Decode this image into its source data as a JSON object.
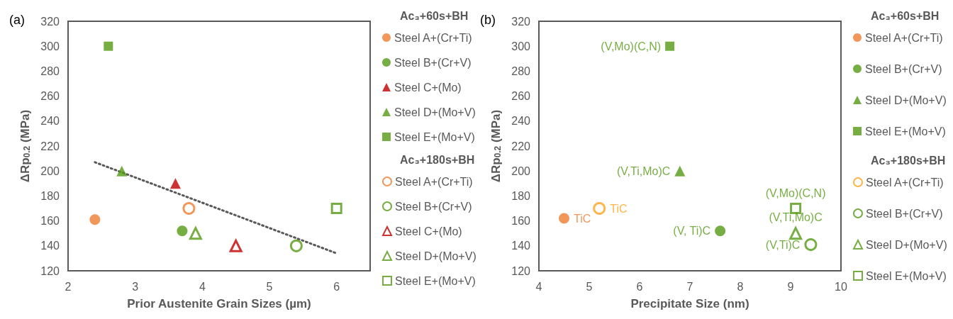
{
  "chart_data": [
    {
      "type": "scatter",
      "title": "(a)",
      "xlabel": "Prior Austenite Grain Sizes (µm)",
      "ylabel": "ΔRp$_{0.2}$ (MPa)",
      "xlim": [
        2,
        6.5
      ],
      "xticks": [
        2,
        3,
        4,
        5,
        6
      ],
      "ylim": [
        120,
        320
      ],
      "yticks": [
        120,
        140,
        160,
        180,
        200,
        220,
        240,
        260,
        280,
        300,
        320
      ],
      "grid": false,
      "legend": "right",
      "annotations": [
        "Ac₃+60s+BH",
        "Ac₃+180s+BH"
      ],
      "series": [
        {
          "name": "Steel A+(Cr+Ti)",
          "color": "#ed7d31",
          "marker": "circle",
          "x": [
            2.4
          ],
          "values": [
            161
          ]
        },
        {
          "name": "Steel B+(Cr+V)",
          "color": "#559a15",
          "marker": "circle",
          "x": [
            3.7
          ],
          "values": [
            152
          ]
        },
        {
          "name": "Steel C+(Mo)",
          "color": "#c00000",
          "marker": "triangle",
          "x": [
            3.6
          ],
          "values": [
            190
          ]
        },
        {
          "name": "Steel D+(Mo+V)",
          "color": "#559a15",
          "marker": "triangle",
          "x": [
            2.8
          ],
          "values": [
            200
          ]
        },
        {
          "name": "Steel E+(Mo+V)",
          "color": "#559a15",
          "marker": "square",
          "x": [
            2.6
          ],
          "values": [
            300
          ]
        },
        {
          "name": "Steel A+(Cr+Ti)",
          "color": "#ed7d31",
          "marker": "circle",
          "x": [
            3.8
          ],
          "values": [
            170
          ]
        },
        {
          "name": "Steel B+(Cr+V)",
          "color": "#559a15",
          "marker": "circle",
          "x": [
            5.4
          ],
          "values": [
            140
          ]
        },
        {
          "name": "Steel C+(Mo)",
          "color": "#c00000",
          "marker": "triangle",
          "x": [
            4.5
          ],
          "values": [
            140
          ]
        },
        {
          "name": "Steel D+(Mo+V)",
          "color": "#559a15",
          "marker": "triangle",
          "x": [
            3.9
          ],
          "values": [
            150
          ]
        },
        {
          "name": "Steel E+(Mo+V)",
          "color": "#559a15",
          "marker": "square",
          "x": [
            6.0
          ],
          "values": [
            170
          ]
        },
        {
          "type": "line",
          "color": "#595959",
          "marker": "none",
          "line_style": "dotted",
          "x": [
            2.4,
            6.0
          ],
          "values": [
            207,
            134
          ]
        }
      ]
    },
    {
      "type": "scatter",
      "title": "(b)",
      "xlabel": "Precipitate Size (nm)",
      "ylabel": "ΔRp$_{0.2}$ (MPa)",
      "xlim": [
        4,
        10
      ],
      "xticks": [
        4,
        5,
        6,
        7,
        8,
        9,
        10
      ],
      "ylim": [
        120,
        320
      ],
      "yticks": [
        120,
        140,
        160,
        180,
        200,
        220,
        240,
        260,
        280,
        300,
        320
      ],
      "grid": false,
      "legend": "right",
      "annotations": [
        "Ac₃+60s+BH",
        "Ac₃+180s+BH"
      ],
      "series": [
        {
          "name": "Steel A+(Cr+Ti)",
          "color": "#ed7d31",
          "marker": "circle",
          "x": [
            4.5
          ],
          "values": [
            162
          ],
          "value_labels": [
            "TiC"
          ]
        },
        {
          "name": "Steel B+(Cr+V)",
          "color": "#559a15",
          "marker": "circle",
          "x": [
            7.6
          ],
          "values": [
            152
          ],
          "value_labels": [
            "(V, Ti)C"
          ]
        },
        {
          "name": "Steel D+(Mo+V)",
          "color": "#559a15",
          "marker": "triangle",
          "x": [
            6.8
          ],
          "values": [
            200
          ],
          "value_labels": [
            "(V,Ti,Mo)C"
          ]
        },
        {
          "name": "Steel E+(Mo+V)",
          "color": "#559a15",
          "marker": "square",
          "x": [
            6.6
          ],
          "values": [
            300
          ],
          "value_labels": [
            "(V,Mo)(C,N)"
          ]
        },
        {
          "name": "Steel A+(Cr+Ti)",
          "color": "#ffa21f",
          "marker": "circle",
          "x": [
            5.2
          ],
          "values": [
            170
          ],
          "value_labels": [
            "TiC"
          ]
        },
        {
          "name": "Steel B+(Cr+V)",
          "color": "#559a15",
          "marker": "circle",
          "x": [
            9.4
          ],
          "values": [
            141
          ],
          "value_labels": [
            "(V,Ti)C"
          ]
        },
        {
          "name": "Steel D+(Mo+V)",
          "color": "#559a15",
          "marker": "triangle",
          "x": [
            9.1
          ],
          "values": [
            150
          ],
          "value_labels": [
            "(V,Ti,Mo)C"
          ]
        },
        {
          "name": "Steel E+(Mo+V)",
          "color": "#559a15",
          "marker": "square",
          "x": [
            9.1
          ],
          "values": [
            170
          ],
          "value_labels": [
            "(V,Mo)(C,N)"
          ]
        }
      ]
    }
  ]
}
